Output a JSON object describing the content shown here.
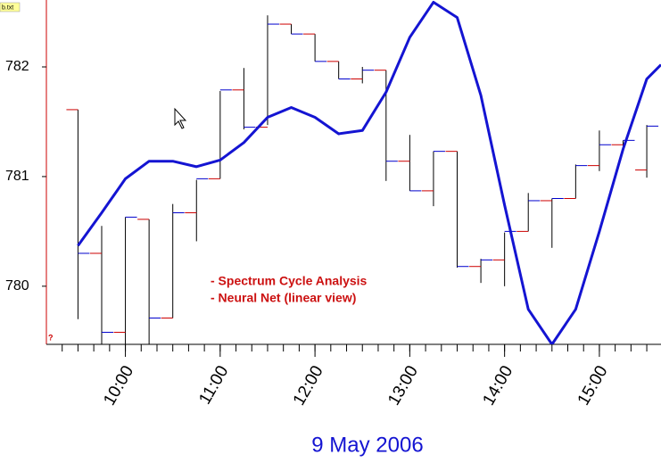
{
  "chart_data": {
    "type": "ohlc",
    "file_label": "b.txt",
    "marker_text": "?",
    "xlabel": "9 May 2006",
    "x": [
      "09:30",
      "09:45",
      "10:00",
      "10:15",
      "10:30",
      "10:45",
      "11:00",
      "11:15",
      "11:30",
      "11:45",
      "12:00",
      "12:15",
      "12:30",
      "12:45",
      "13:00",
      "13:15",
      "13:30",
      "13:45",
      "14:00",
      "14:15",
      "14:30",
      "14:45",
      "15:00",
      "15:15",
      "15:30"
    ],
    "open": [
      781.61,
      780.3,
      779.58,
      780.61,
      779.71,
      780.67,
      780.98,
      781.79,
      781.45,
      782.39,
      782.3,
      782.05,
      781.89,
      781.97,
      781.14,
      780.87,
      781.23,
      780.18,
      780.24,
      780.5,
      780.78,
      780.8,
      781.1,
      781.29,
      781.06
    ],
    "high": [
      781.61,
      780.55,
      780.63,
      780.61,
      780.75,
      780.97,
      781.78,
      781.99,
      782.47,
      782.39,
      782.3,
      782.05,
      782.0,
      781.97,
      781.38,
      781.23,
      781.23,
      780.25,
      780.49,
      780.85,
      780.8,
      781.11,
      781.42,
      781.33,
      781.47
    ],
    "low": [
      779.7,
      779.47,
      779.47,
      779.47,
      779.71,
      780.41,
      780.98,
      781.43,
      781.47,
      782.3,
      782.05,
      781.89,
      781.85,
      780.96,
      780.87,
      780.73,
      780.17,
      780.03,
      780.0,
      780.5,
      780.35,
      780.8,
      781.05,
      781.25,
      780.99
    ],
    "close": [
      780.3,
      779.58,
      780.63,
      779.71,
      780.67,
      780.98,
      781.79,
      781.45,
      782.39,
      782.3,
      782.05,
      781.89,
      781.97,
      781.14,
      780.87,
      781.23,
      780.18,
      780.24,
      780.5,
      780.78,
      780.8,
      781.1,
      781.29,
      781.33,
      781.46
    ],
    "open_color": "#cc0000",
    "close_color": "#0000cc",
    "bar_color": "#000000",
    "series": [
      {
        "color": "#1414d2",
        "x": [
          "09:30",
          "09:45",
          "10:00",
          "10:15",
          "10:30",
          "10:45",
          "11:00",
          "11:15",
          "11:30",
          "11:45",
          "12:00",
          "12:15",
          "12:30",
          "12:45",
          "13:00",
          "13:15",
          "13:30",
          "13:45",
          "14:00",
          "14:15",
          "14:30",
          "14:45",
          "15:00",
          "15:15",
          "15:30",
          "15:39"
        ],
        "values": [
          780.37,
          780.67,
          780.98,
          781.14,
          781.14,
          781.09,
          781.15,
          781.31,
          781.54,
          781.63,
          781.54,
          781.39,
          781.42,
          781.77,
          782.27,
          782.59,
          782.45,
          781.74,
          780.74,
          779.79,
          779.47,
          779.79,
          780.5,
          781.25,
          781.89,
          782.02
        ]
      }
    ],
    "annotations": [
      "- Spectrum Cycle Analysis",
      "- Neural Net (linear view)"
    ],
    "annotation_color": "#cc1111",
    "xlim": [
      "09:10",
      "15:39"
    ],
    "ylim": [
      779.47,
      782.61
    ],
    "yticks": [
      780,
      781,
      782
    ],
    "xticks": [
      "10:00",
      "11:00",
      "12:00",
      "13:00",
      "14:00",
      "15:00"
    ],
    "xminor_ticks": [
      "09:20",
      "09:30",
      "09:40",
      "09:50",
      "10:00",
      "10:10",
      "10:20",
      "10:30",
      "10:40",
      "10:50",
      "11:00",
      "11:10",
      "11:20",
      "11:30",
      "11:40",
      "11:50",
      "12:00",
      "12:10",
      "12:20",
      "12:30",
      "12:40",
      "12:50",
      "13:00",
      "13:10",
      "13:20",
      "13:30",
      "13:40",
      "13:50",
      "14:00",
      "14:10",
      "14:20",
      "14:30",
      "14:40",
      "14:50",
      "15:00",
      "15:10",
      "15:20",
      "15:30"
    ]
  }
}
